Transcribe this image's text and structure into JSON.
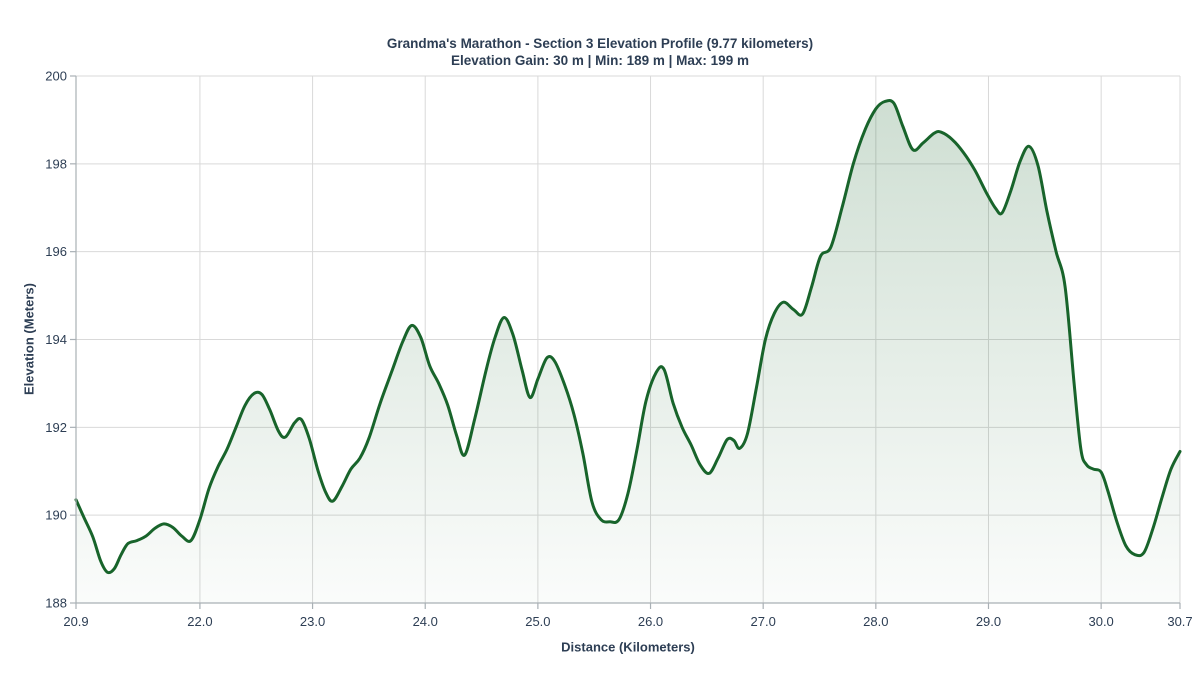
{
  "chart_data": {
    "type": "area",
    "title": "Grandma's Marathon - Section 3 Elevation Profile (9.77 kilometers)",
    "subtitle": "Elevation Gain: 30 m | Min: 189 m | Max: 199 m",
    "xlabel": "Distance (Kilometers)",
    "ylabel": "Elevation (Meters)",
    "xlim": [
      20.9,
      30.7
    ],
    "ylim": [
      188,
      200
    ],
    "xticks": [
      20.9,
      22.0,
      23.0,
      24.0,
      25.0,
      26.0,
      27.0,
      28.0,
      29.0,
      30.0,
      30.7
    ],
    "yticks": [
      188,
      190,
      192,
      194,
      196,
      198,
      200
    ],
    "grid": true,
    "legend": "none",
    "stats": {
      "section": 3,
      "length_km": 9.77,
      "elevation_gain_m": 30,
      "min_m": 189,
      "max_m": 199
    },
    "series": [
      {
        "name": "Elevation",
        "x": [
          20.9,
          20.97,
          21.05,
          21.12,
          21.18,
          21.24,
          21.3,
          21.36,
          21.44,
          21.52,
          21.6,
          21.68,
          21.76,
          21.84,
          21.92,
          22.0,
          22.08,
          22.16,
          22.24,
          22.32,
          22.4,
          22.48,
          22.55,
          22.62,
          22.7,
          22.76,
          22.84,
          22.9,
          22.97,
          23.05,
          23.12,
          23.18,
          23.26,
          23.34,
          23.42,
          23.5,
          23.6,
          23.7,
          23.8,
          23.88,
          23.96,
          24.04,
          24.12,
          24.2,
          24.28,
          24.35,
          24.44,
          24.54,
          24.62,
          24.7,
          24.78,
          24.86,
          24.93,
          25.0,
          25.08,
          25.15,
          25.24,
          25.32,
          25.4,
          25.48,
          25.56,
          25.64,
          25.72,
          25.8,
          25.88,
          25.96,
          26.05,
          26.12,
          26.2,
          26.28,
          26.36,
          26.44,
          26.52,
          26.6,
          26.68,
          26.74,
          26.79,
          26.86,
          26.94,
          27.02,
          27.1,
          27.18,
          27.27,
          27.35,
          27.43,
          27.51,
          27.6,
          27.7,
          27.8,
          27.9,
          28.0,
          28.08,
          28.16,
          28.24,
          28.33,
          28.42,
          28.52,
          28.58,
          28.68,
          28.78,
          28.88,
          28.98,
          29.06,
          29.12,
          29.2,
          29.28,
          29.36,
          29.44,
          29.52,
          29.6,
          29.68,
          29.76,
          29.82,
          29.87,
          29.93,
          30.0,
          30.06,
          30.14,
          30.22,
          30.3,
          30.38,
          30.46,
          30.54,
          30.62,
          30.7
        ],
        "y": [
          190.35,
          189.95,
          189.5,
          188.95,
          188.7,
          188.78,
          189.1,
          189.35,
          189.42,
          189.52,
          189.7,
          189.8,
          189.72,
          189.52,
          189.42,
          189.9,
          190.6,
          191.1,
          191.5,
          192.0,
          192.5,
          192.77,
          192.75,
          192.4,
          191.9,
          191.78,
          192.1,
          192.18,
          191.75,
          191.0,
          190.5,
          190.32,
          190.65,
          191.05,
          191.3,
          191.75,
          192.55,
          193.25,
          193.95,
          194.32,
          194.05,
          193.4,
          193.0,
          192.5,
          191.8,
          191.37,
          192.2,
          193.3,
          194.05,
          194.5,
          194.1,
          193.3,
          192.68,
          193.1,
          193.58,
          193.5,
          192.95,
          192.3,
          191.4,
          190.3,
          189.9,
          189.85,
          189.9,
          190.5,
          191.5,
          192.6,
          193.25,
          193.32,
          192.55,
          192.0,
          191.6,
          191.15,
          190.95,
          191.3,
          191.72,
          191.7,
          191.52,
          191.85,
          192.9,
          194.0,
          194.6,
          194.85,
          194.68,
          194.58,
          195.2,
          195.9,
          196.1,
          197.0,
          198.0,
          198.75,
          199.25,
          199.42,
          199.38,
          198.85,
          198.32,
          198.48,
          198.7,
          198.72,
          198.55,
          198.25,
          197.85,
          197.35,
          197.0,
          196.88,
          197.4,
          198.05,
          198.4,
          197.95,
          196.9,
          196.0,
          195.2,
          193.0,
          191.5,
          191.15,
          191.05,
          190.98,
          190.55,
          189.85,
          189.3,
          189.1,
          189.15,
          189.7,
          190.4,
          191.05,
          191.45
        ]
      }
    ],
    "colors": {
      "line": "#18642b",
      "fill_top": "rgba(24,100,43,0.22)",
      "fill_bottom": "rgba(24,100,43,0.02)",
      "grid": "#d9d9d9",
      "axis": "#a9b0b5",
      "text": "#2d3e54"
    }
  }
}
